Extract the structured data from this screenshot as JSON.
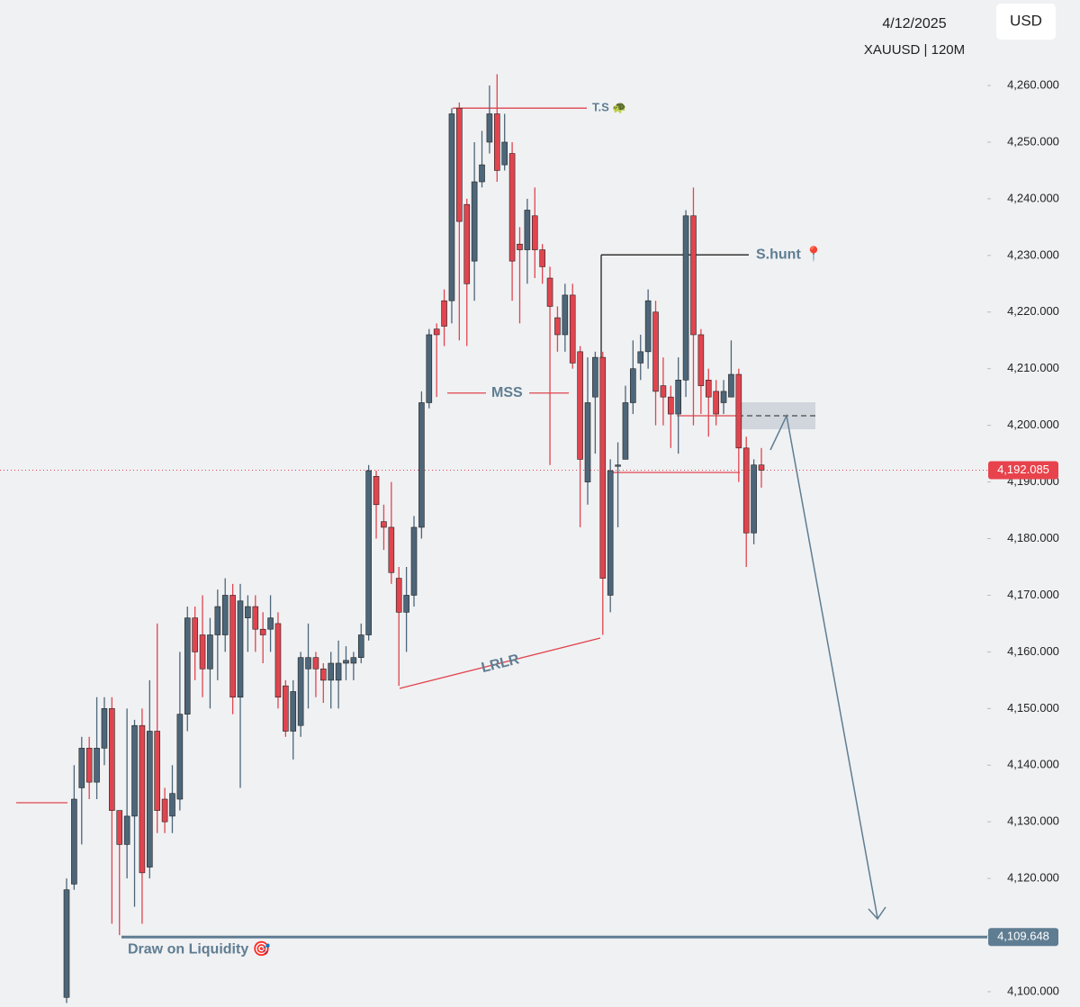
{
  "chart_data": {
    "type": "candlestick",
    "date": "4/12/2025",
    "symbol": "XAUUSD | 120M",
    "currency": "USD",
    "up_color": "#4d6679",
    "down_color": "#e0454f",
    "ylim": [
      4097.3,
      4275.1
    ],
    "yticks": [
      {
        "value": 4100,
        "label": "4,100.000"
      },
      {
        "value": 4110,
        "label": "4,110.000"
      },
      {
        "value": 4120,
        "label": "4,120.000"
      },
      {
        "value": 4130,
        "label": "4,130.000"
      },
      {
        "value": 4140,
        "label": "4,140.000"
      },
      {
        "value": 4150,
        "label": "4,150.000"
      },
      {
        "value": 4160,
        "label": "4,160.000"
      },
      {
        "value": 4170,
        "label": "4,170.000"
      },
      {
        "value": 4180,
        "label": "4,180.000"
      },
      {
        "value": 4190,
        "label": "4,190.000"
      },
      {
        "value": 4200,
        "label": "4,200.000"
      },
      {
        "value": 4210,
        "label": "4,210.000"
      },
      {
        "value": 4220,
        "label": "4,220.000"
      },
      {
        "value": 4230,
        "label": "4,230.000"
      },
      {
        "value": 4240,
        "label": "4,240.000"
      },
      {
        "value": 4250,
        "label": "4,250.000"
      },
      {
        "value": 4260,
        "label": "4,260.000"
      }
    ],
    "open": [
      4099,
      4119,
      4136,
      4143,
      4137,
      4143,
      4150,
      4132,
      4126,
      4131,
      4147,
      4122,
      4146,
      4134,
      4131,
      4134,
      4149,
      4166,
      4163,
      4157,
      4163,
      4163,
      4170,
      4152,
      4166,
      4168,
      4164,
      4164,
      4165,
      4154,
      4146,
      4147,
      4157,
      4159,
      4157,
      4155,
      4155,
      4158,
      4158,
      4159,
      4163,
      4191,
      4183,
      4182,
      4173,
      4167,
      4170,
      4182,
      4204,
      4217,
      4222,
      4222,
      4256,
      4239,
      4229,
      4243,
      4250,
      4255,
      4246,
      4248,
      4232,
      4231,
      4237,
      4231,
      4226,
      4219,
      4216,
      4223,
      4213,
      4190,
      4205,
      4212,
      4170,
      4193,
      4194,
      4204,
      4211,
      4213,
      4220,
      4207,
      4205,
      4202,
      4208,
      4237,
      4216,
      4208,
      4206,
      4204,
      4205,
      4209,
      4196,
      4181,
      4193
    ],
    "high": [
      4120,
      4140,
      4145,
      4145,
      4152,
      4152,
      4152,
      4132,
      4150,
      4148,
      4150,
      4155,
      4165,
      4136,
      4140,
      4160,
      4168,
      4168,
      4170,
      4166,
      4171,
      4173,
      4172,
      4172,
      4170,
      4170,
      4167,
      4170,
      4167,
      4155,
      4155,
      4160,
      4165,
      4160,
      4158,
      4160,
      4162,
      4161,
      4160,
      4165,
      4193,
      4192,
      4186,
      4190,
      4175,
      4175,
      4184,
      4206,
      4217,
      4218,
      4224,
      4256,
      4257,
      4240,
      4250,
      4252,
      4260,
      4262,
      4255,
      4250,
      4235,
      4240,
      4242,
      4232,
      4228,
      4221,
      4225,
      4225,
      4214,
      4212,
      4213,
      4213,
      4194,
      4197,
      4207,
      4215,
      4216,
      4224,
      4222,
      4212,
      4207,
      4212,
      4238,
      4242,
      4217,
      4210,
      4208,
      4208,
      4215,
      4210,
      4198,
      4194,
      4196
    ],
    "low": [
      4098,
      4118,
      4126,
      4134,
      4134,
      4140,
      4112,
      4110,
      4120,
      4115,
      4112,
      4120,
      4128,
      4128,
      4128,
      4132,
      4146,
      4155,
      4152,
      4150,
      4155,
      4160,
      4149,
      4136,
      4160,
      4160,
      4158,
      4160,
      4150,
      4145,
      4141,
      4145,
      4150,
      4152,
      4151,
      4150,
      4150,
      4155,
      4155,
      4158,
      4162,
      4180,
      4178,
      4172,
      4154,
      4160,
      4168,
      4180,
      4203,
      4205,
      4214,
      4218,
      4215,
      4214,
      4222,
      4242,
      4248,
      4243,
      4245,
      4222,
      4218,
      4225,
      4226,
      4225,
      4193,
      4213,
      4213,
      4210,
      4182,
      4186,
      4195,
      4163,
      4167,
      4182,
      4194,
      4202,
      4208,
      4210,
      4200,
      4200,
      4196,
      4195,
      4205,
      4200,
      4202,
      4198,
      4200,
      4202,
      4206,
      4190,
      4175,
      4179,
      4189
    ],
    "close": [
      4118,
      4134,
      4143,
      4137,
      4143,
      4150,
      4132,
      4126,
      4131,
      4147,
      4121,
      4146,
      4132,
      4130,
      4135,
      4149,
      4166,
      4160,
      4157,
      4163,
      4168,
      4170,
      4152,
      4169,
      4168,
      4164,
      4163,
      4166,
      4152,
      4146,
      4153,
      4159,
      4159,
      4157,
      4155,
      4158,
      4158,
      4158.5,
      4159,
      4163,
      4192,
      4186,
      4182,
      4174,
      4167,
      4170,
      4182,
      4204,
      4216,
      4216,
      4217.5,
      4255,
      4236,
      4225,
      4243,
      4246,
      4255,
      4245,
      4250,
      4229,
      4231,
      4238,
      4231,
      4228,
      4221,
      4216,
      4223,
      4211,
      4194,
      4204,
      4212,
      4173,
      4192,
      4193,
      4204,
      4210,
      4213,
      4222,
      4206,
      4205,
      4202,
      4208,
      4237,
      4216,
      4207,
      4205,
      4202,
      4206,
      4209,
      4196,
      4181,
      4193,
      4192.085
    ],
    "levels": [
      {
        "label": "T.S 🐢",
        "value": 4256
      },
      {
        "label": "S.hunt 📍",
        "value": 4230.1
      },
      {
        "label": "MSS",
        "value": 4205.7
      }
    ],
    "pattern_label": "LRLR",
    "last_price": {
      "value": 4192.085,
      "label": "4,192.085"
    },
    "liquidity": {
      "label": "Draw on Liquidity 🎯",
      "value": 4109.648,
      "price_label": "4,109.648"
    }
  }
}
